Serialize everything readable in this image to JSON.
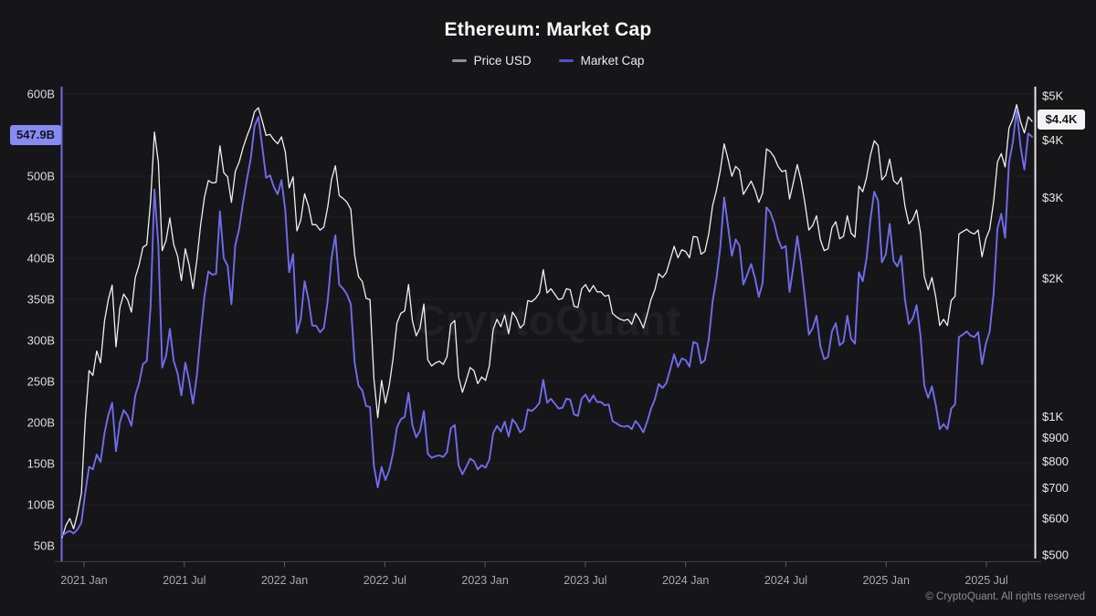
{
  "header": {
    "title": "Ethereum: Market Cap",
    "legend": [
      {
        "label": "Price USD",
        "color": "#8f8f97"
      },
      {
        "label": "Market Cap",
        "color": "#564fd0"
      }
    ]
  },
  "watermark": "CryptoQuant",
  "footer": {
    "copyright": "© CryptoQuant. All rights reserved"
  },
  "badges": {
    "market_cap": {
      "label": "547.9B",
      "value": 547.9,
      "bg": "#868af1"
    },
    "price": {
      "label": "$4.4K",
      "value": 4400,
      "bg": "#f4f4f6"
    }
  },
  "chart_data": {
    "type": "line",
    "title": "Ethereum: Market Cap",
    "x_start_date": "2020-11-22",
    "x_step_days": 7,
    "x_end_date": "2025-09-21",
    "grid": "horizontal-faint",
    "legend_position": "top-center",
    "x_ticks": [
      {
        "label": "2021 Jan",
        "year": 2021.0
      },
      {
        "label": "2021 Jul",
        "year": 2021.5
      },
      {
        "label": "2022 Jan",
        "year": 2022.0
      },
      {
        "label": "2022 Jul",
        "year": 2022.5
      },
      {
        "label": "2023 Jan",
        "year": 2023.0
      },
      {
        "label": "2023 Jul",
        "year": 2023.5
      },
      {
        "label": "2024 Jan",
        "year": 2024.0
      },
      {
        "label": "2024 Jul",
        "year": 2024.5
      },
      {
        "label": "2025 Jan",
        "year": 2025.0
      },
      {
        "label": "2025 Jul",
        "year": 2025.5
      }
    ],
    "left_axis": {
      "name": "Market Cap (billions USD)",
      "scale": "linear",
      "range": [
        50,
        600
      ],
      "axis_color": "#6e69e8",
      "ticks": [
        {
          "label": "600B",
          "value": 600
        },
        {
          "label": "500B",
          "value": 500
        },
        {
          "label": "450B",
          "value": 450
        },
        {
          "label": "400B",
          "value": 400
        },
        {
          "label": "350B",
          "value": 350
        },
        {
          "label": "300B",
          "value": 300
        },
        {
          "label": "250B",
          "value": 250
        },
        {
          "label": "200B",
          "value": 200
        },
        {
          "label": "150B",
          "value": 150
        },
        {
          "label": "100B",
          "value": 100
        },
        {
          "label": "50B",
          "value": 50
        }
      ],
      "last_value_label": "547.9B"
    },
    "right_axis": {
      "name": "Price USD",
      "scale": "log",
      "range": [
        500,
        5000
      ],
      "axis_color": "#e4e4e8",
      "ticks": [
        {
          "label": "$5K",
          "value": 5000
        },
        {
          "label": "$4K",
          "value": 4000
        },
        {
          "label": "$3K",
          "value": 3000
        },
        {
          "label": "$2K",
          "value": 2000
        },
        {
          "label": "$1K",
          "value": 1000
        },
        {
          "label": "$900",
          "value": 900
        },
        {
          "label": "$800",
          "value": 800
        },
        {
          "label": "$700",
          "value": 700
        },
        {
          "label": "$600",
          "value": 600
        },
        {
          "label": "$500",
          "value": 500
        }
      ],
      "last_value_label": "$4.4K"
    },
    "series": [
      {
        "name": "Price USD",
        "axis": "right",
        "color": "#f0f0f2",
        "width": 1.3,
        "values": [
          545,
          580,
          600,
          570,
          615,
          680,
          980,
          1260,
          1230,
          1390,
          1310,
          1615,
          1800,
          1935,
          1420,
          1725,
          1850,
          1800,
          1690,
          2010,
          2140,
          2340,
          2370,
          2950,
          4170,
          3580,
          2300,
          2420,
          2710,
          2370,
          2240,
          1980,
          2320,
          2140,
          1900,
          2190,
          2620,
          3010,
          3270,
          3230,
          3240,
          3890,
          3400,
          3330,
          2930,
          3420,
          3590,
          3850,
          4080,
          4290,
          4620,
          4710,
          4410,
          4100,
          4120,
          4010,
          3930,
          4070,
          3770,
          3150,
          3330,
          2540,
          2680,
          3060,
          2880,
          2620,
          2620,
          2550,
          2590,
          2860,
          3290,
          3520,
          3030,
          2990,
          2930,
          2830,
          2250,
          2020,
          1970,
          1810,
          1800,
          1210,
          995,
          1200,
          1070,
          1170,
          1340,
          1600,
          1680,
          1700,
          1940,
          1620,
          1500,
          1560,
          1760,
          1330,
          1290,
          1310,
          1320,
          1300,
          1350,
          1590,
          1620,
          1220,
          1130,
          1200,
          1280,
          1260,
          1180,
          1220,
          1200,
          1290,
          1550,
          1630,
          1570,
          1665,
          1515,
          1690,
          1640,
          1560,
          1590,
          1790,
          1780,
          1810,
          1860,
          2090,
          1860,
          1900,
          1850,
          1800,
          1810,
          1900,
          1890,
          1740,
          1730,
          1900,
          1940,
          1870,
          1930,
          1870,
          1870,
          1830,
          1840,
          1680,
          1650,
          1630,
          1620,
          1630,
          1590,
          1680,
          1630,
          1560,
          1670,
          1800,
          1890,
          2050,
          2010,
          2060,
          2200,
          2350,
          2220,
          2310,
          2290,
          2220,
          2470,
          2460,
          2260,
          2290,
          2500,
          2880,
          3110,
          3430,
          3930,
          3640,
          3340,
          3510,
          3440,
          3050,
          3150,
          3260,
          3120,
          2930,
          3070,
          3830,
          3780,
          3680,
          3510,
          3420,
          3440,
          2980,
          3240,
          3540,
          3270,
          2910,
          2550,
          2610,
          2740,
          2430,
          2300,
          2320,
          2580,
          2660,
          2440,
          2470,
          2740,
          2510,
          2460,
          3180,
          3090,
          3320,
          3710,
          3990,
          3900,
          3280,
          3360,
          3640,
          3270,
          3210,
          3320,
          2870,
          2630,
          2690,
          2820,
          2520,
          2020,
          1890,
          2010,
          1820,
          1580,
          1630,
          1580,
          1790,
          1830,
          2500,
          2530,
          2560,
          2520,
          2500,
          2550,
          2230,
          2440,
          2560,
          2940,
          3590,
          3740,
          3500,
          4250,
          4450,
          4780,
          4390,
          4150,
          4500,
          4400
        ]
      },
      {
        "name": "Market Cap",
        "axis": "left",
        "color": "#716cee",
        "width": 1.9,
        "values": [
          62,
          66,
          68,
          65,
          70,
          78,
          114,
          146,
          143,
          161,
          152,
          187,
          209,
          224,
          165,
          200,
          215,
          209,
          196,
          233,
          248,
          271,
          275,
          342,
          484,
          415,
          267,
          281,
          314,
          275,
          260,
          233,
          273,
          251,
          223,
          257,
          308,
          354,
          384,
          380,
          381,
          457,
          400,
          391,
          344,
          416,
          436,
          468,
          496,
          521,
          561,
          572,
          536,
          498,
          501,
          487,
          478,
          495,
          458,
          383,
          405,
          309,
          326,
          372,
          350,
          318,
          318,
          310,
          315,
          348,
          400,
          428,
          368,
          363,
          356,
          344,
          273,
          245,
          239,
          220,
          219,
          147,
          121,
          146,
          130,
          142,
          163,
          194,
          204,
          207,
          236,
          197,
          182,
          190,
          214,
          162,
          157,
          159,
          160,
          158,
          164,
          193,
          197,
          148,
          137,
          146,
          156,
          153,
          143,
          148,
          145,
          155,
          187,
          196,
          189,
          201,
          183,
          204,
          198,
          188,
          192,
          216,
          214,
          218,
          224,
          252,
          224,
          229,
          223,
          217,
          218,
          229,
          228,
          210,
          208,
          229,
          234,
          225,
          233,
          225,
          225,
          221,
          222,
          202,
          199,
          196,
          195,
          196,
          192,
          202,
          196,
          188,
          201,
          217,
          228,
          247,
          242,
          248,
          265,
          283,
          268,
          278,
          276,
          268,
          298,
          296,
          272,
          276,
          301,
          347,
          375,
          413,
          474,
          439,
          403,
          423,
          415,
          368,
          380,
          393,
          376,
          353,
          370,
          462,
          456,
          443,
          423,
          412,
          415,
          359,
          390,
          427,
          394,
          351,
          307,
          315,
          330,
          293,
          277,
          280,
          311,
          321,
          294,
          298,
          330,
          302,
          296,
          383,
          372,
          400,
          447,
          481,
          470,
          395,
          405,
          442,
          397,
          390,
          403,
          349,
          320,
          327,
          343,
          306,
          245,
          230,
          244,
          221,
          192,
          198,
          192,
          217,
          222,
          304,
          307,
          311,
          306,
          304,
          310,
          271,
          296,
          311,
          357,
          436,
          454,
          425,
          516,
          541,
          581,
          536,
          508,
          552,
          547.9
        ]
      }
    ]
  }
}
